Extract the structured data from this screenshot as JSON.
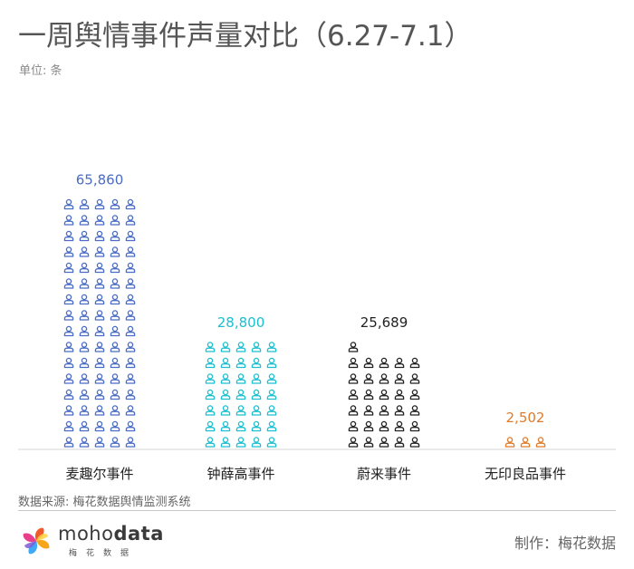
{
  "header": {
    "title": "一周舆情事件声量对比（6.27-7.1）",
    "unit": "单位: 条"
  },
  "footer": {
    "source": "数据来源: 梅花数据舆情监测系统",
    "maker": "制作：梅花数据",
    "logo_text_a": "moho",
    "logo_text_b": "data",
    "logo_sub": "梅花数据"
  },
  "chart_data": {
    "type": "bar",
    "subtype": "pictograph",
    "title": "一周舆情事件声量对比（6.27-7.1）",
    "unit": "单位: 条",
    "categories": [
      "麦趣尔事件",
      "钟薛高事件",
      "蔚来事件",
      "无印良品事件"
    ],
    "values": [
      65860,
      28800,
      25689,
      2502
    ],
    "value_labels": [
      "65,860",
      "28,800",
      "25,689",
      "2,502"
    ],
    "colors": [
      "#4a6cc4",
      "#1cbfcf",
      "#222222",
      "#e07b2a"
    ],
    "icon": "person-icon",
    "icons_per_row": 5,
    "icon_counts": [
      80,
      35,
      31,
      3
    ],
    "grid": false,
    "legend": "none"
  }
}
